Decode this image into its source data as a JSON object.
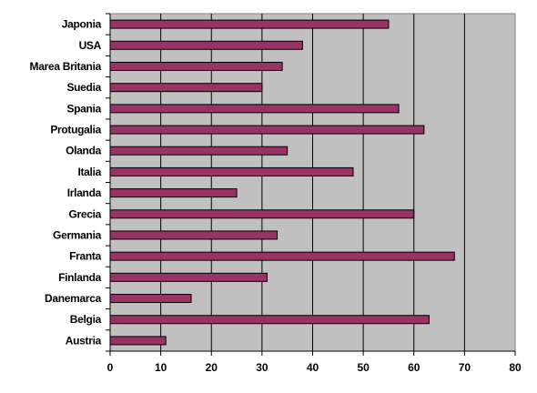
{
  "chart_data": {
    "type": "bar",
    "orientation": "horizontal",
    "title": "",
    "xlabel": "",
    "ylabel": "",
    "categories": [
      "Japonia",
      "USA",
      "Marea Britania",
      "Suedia",
      "Spania",
      "Protugalia",
      "Olanda",
      "Italia",
      "Irlanda",
      "Grecia",
      "Germania",
      "Franta",
      "Finlanda",
      "Danemarca",
      "Belgia",
      "Austria"
    ],
    "values": [
      55,
      38,
      34,
      30,
      57,
      62,
      35,
      48,
      25,
      60,
      33,
      68,
      31,
      16,
      63,
      11
    ],
    "xlim": [
      0,
      80
    ],
    "xticks": [
      "0",
      "10",
      "20",
      "30",
      "40",
      "50",
      "60",
      "70",
      "80"
    ],
    "grid": "vertical",
    "legend": "none",
    "colors": {
      "bar_fill": "#993366",
      "bar_stroke": "#000000",
      "plot_background": "#c0c0c0",
      "gridline": "#000000"
    }
  }
}
